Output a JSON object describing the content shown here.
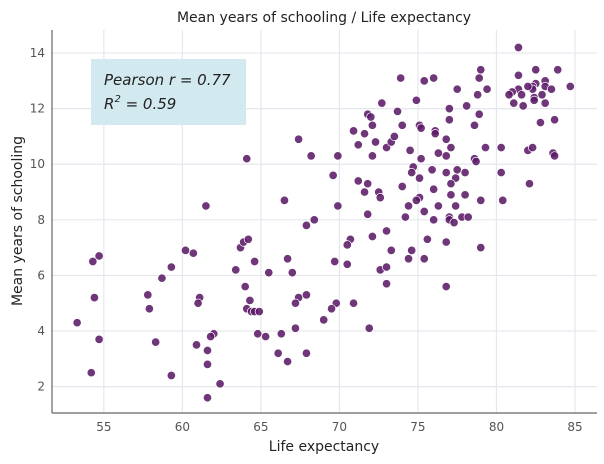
{
  "chart_data": {
    "type": "scatter",
    "title": "Mean years of schooling / Life expectancy",
    "xlabel": "Life expectancy",
    "ylabel": "Mean years of schooling",
    "xlim": [
      51.7,
      86.4
    ],
    "ylim": [
      1.05,
      14.83
    ],
    "xticks": [
      "55",
      "60",
      "65",
      "70",
      "75",
      "80",
      "85"
    ],
    "yticks": [
      "2",
      "4",
      "6",
      "8",
      "10",
      "12",
      "14"
    ],
    "grid": true,
    "point_color": "#5b1a66",
    "annotation": {
      "pearson": "Pearson r = 0.77",
      "r2_base": "R",
      "r2_exp": "2",
      "r2_value": " = 0.59",
      "box_color": "#add8e6"
    },
    "points": [
      [
        61.5,
        8.5
      ],
      [
        54.7,
        6.7
      ],
      [
        54.3,
        6.5
      ],
      [
        54.4,
        5.2
      ],
      [
        53.3,
        4.3
      ],
      [
        54.7,
        3.7
      ],
      [
        54.2,
        2.5
      ],
      [
        60.2,
        6.9
      ],
      [
        60.7,
        6.8
      ],
      [
        59.3,
        6.3
      ],
      [
        58.7,
        5.9
      ],
      [
        57.8,
        5.3
      ],
      [
        57.9,
        4.8
      ],
      [
        58.3,
        3.6
      ],
      [
        59.3,
        2.4
      ],
      [
        61.1,
        5.2
      ],
      [
        61.0,
        5.0
      ],
      [
        62.0,
        3.9
      ],
      [
        61.8,
        3.8
      ],
      [
        60.9,
        3.5
      ],
      [
        61.6,
        3.3
      ],
      [
        61.6,
        2.8
      ],
      [
        62.4,
        2.1
      ],
      [
        61.6,
        1.6
      ],
      [
        63.4,
        6.2
      ],
      [
        63.7,
        7.0
      ],
      [
        63.9,
        7.2
      ],
      [
        64.2,
        7.3
      ],
      [
        64.0,
        5.6
      ],
      [
        64.1,
        10.2
      ],
      [
        67.4,
        10.9
      ],
      [
        68.2,
        10.3
      ],
      [
        69.9,
        10.3
      ],
      [
        70.9,
        11.2
      ],
      [
        71.6,
        11.1
      ],
      [
        72.1,
        11.4
      ],
      [
        71.2,
        10.7
      ],
      [
        72.3,
        10.8
      ],
      [
        72.1,
        10.3
      ],
      [
        73.0,
        10.6
      ],
      [
        73.3,
        10.8
      ],
      [
        73.5,
        11.0
      ],
      [
        69.6,
        9.6
      ],
      [
        71.2,
        9.4
      ],
      [
        71.8,
        9.3
      ],
      [
        71.6,
        9.0
      ],
      [
        72.5,
        9.0
      ],
      [
        72.6,
        8.8
      ],
      [
        69.9,
        8.5
      ],
      [
        66.5,
        8.7
      ],
      [
        71.8,
        8.2
      ],
      [
        68.4,
        8.0
      ],
      [
        67.9,
        7.8
      ],
      [
        73.0,
        7.6
      ],
      [
        72.1,
        7.4
      ],
      [
        70.7,
        7.3
      ],
      [
        70.5,
        7.1
      ],
      [
        73.3,
        6.9
      ],
      [
        64.6,
        6.5
      ],
      [
        65.5,
        6.1
      ],
      [
        66.7,
        6.6
      ],
      [
        67.0,
        6.1
      ],
      [
        69.7,
        6.5
      ],
      [
        70.5,
        6.4
      ],
      [
        72.6,
        6.2
      ],
      [
        73.0,
        6.3
      ],
      [
        73.0,
        5.7
      ],
      [
        64.3,
        5.1
      ],
      [
        64.1,
        4.8
      ],
      [
        64.4,
        4.7
      ],
      [
        64.6,
        4.7
      ],
      [
        64.9,
        4.7
      ],
      [
        67.9,
        5.3
      ],
      [
        67.4,
        5.2
      ],
      [
        67.2,
        5.0
      ],
      [
        69.8,
        5.0
      ],
      [
        69.5,
        4.8
      ],
      [
        70.9,
        5.0
      ],
      [
        69.0,
        4.4
      ],
      [
        71.9,
        4.1
      ],
      [
        67.2,
        4.1
      ],
      [
        64.8,
        3.9
      ],
      [
        65.3,
        3.8
      ],
      [
        66.3,
        3.9
      ],
      [
        66.1,
        3.2
      ],
      [
        66.7,
        2.9
      ],
      [
        67.9,
        3.2
      ],
      [
        73.9,
        13.1
      ],
      [
        75.4,
        13.0
      ],
      [
        76.0,
        13.1
      ],
      [
        79.0,
        13.4
      ],
      [
        78.9,
        13.1
      ],
      [
        77.5,
        12.7
      ],
      [
        78.8,
        12.5
      ],
      [
        79.4,
        12.7
      ],
      [
        72.7,
        12.2
      ],
      [
        74.9,
        12.3
      ],
      [
        77.0,
        12.0
      ],
      [
        78.1,
        12.1
      ],
      [
        73.7,
        11.9
      ],
      [
        78.9,
        11.8
      ],
      [
        77.0,
        11.6
      ],
      [
        74.0,
        11.4
      ],
      [
        75.1,
        11.4
      ],
      [
        75.2,
        11.3
      ],
      [
        76.1,
        11.2
      ],
      [
        76.1,
        11.1
      ],
      [
        78.6,
        11.4
      ],
      [
        76.8,
        10.9
      ],
      [
        77.1,
        10.6
      ],
      [
        79.3,
        10.6
      ],
      [
        74.5,
        10.5
      ],
      [
        76.3,
        10.4
      ],
      [
        76.8,
        10.3
      ],
      [
        75.2,
        10.2
      ],
      [
        78.6,
        10.2
      ],
      [
        78.7,
        10.1
      ],
      [
        74.7,
        9.9
      ],
      [
        74.6,
        9.7
      ],
      [
        75.9,
        9.8
      ],
      [
        76.8,
        9.7
      ],
      [
        77.5,
        9.8
      ],
      [
        78.0,
        9.7
      ],
      [
        75.1,
        9.5
      ],
      [
        77.4,
        9.5
      ],
      [
        77.1,
        9.3
      ],
      [
        74.0,
        9.2
      ],
      [
        76.0,
        9.1
      ],
      [
        77.1,
        8.9
      ],
      [
        78.0,
        8.9
      ],
      [
        75.1,
        8.8
      ],
      [
        74.9,
        8.7
      ],
      [
        79.0,
        8.7
      ],
      [
        74.4,
        8.5
      ],
      [
        76.3,
        8.5
      ],
      [
        77.4,
        8.5
      ],
      [
        75.4,
        8.3
      ],
      [
        74.2,
        8.1
      ],
      [
        76.0,
        8.0
      ],
      [
        77.0,
        8.1
      ],
      [
        77.0,
        8.0
      ],
      [
        77.3,
        7.9
      ],
      [
        77.8,
        8.1
      ],
      [
        78.2,
        8.1
      ],
      [
        75.6,
        7.3
      ],
      [
        76.8,
        7.2
      ],
      [
        79.0,
        7.0
      ],
      [
        74.6,
        6.9
      ],
      [
        74.4,
        6.6
      ],
      [
        75.4,
        6.6
      ],
      [
        76.8,
        5.6
      ],
      [
        71.8,
        11.8
      ],
      [
        72.0,
        11.7
      ],
      [
        81.4,
        14.2
      ],
      [
        81.4,
        13.2
      ],
      [
        82.5,
        13.4
      ],
      [
        83.9,
        13.4
      ],
      [
        83.1,
        13.0
      ],
      [
        82.5,
        12.9
      ],
      [
        82.3,
        12.8
      ],
      [
        82.3,
        12.7
      ],
      [
        82.0,
        12.8
      ],
      [
        81.4,
        12.7
      ],
      [
        81.0,
        12.6
      ],
      [
        80.8,
        12.5
      ],
      [
        81.6,
        12.5
      ],
      [
        83.1,
        12.8
      ],
      [
        83.5,
        12.7
      ],
      [
        82.9,
        12.5
      ],
      [
        84.7,
        12.8
      ],
      [
        81.1,
        12.2
      ],
      [
        81.7,
        12.1
      ],
      [
        82.4,
        12.4
      ],
      [
        82.4,
        12.3
      ],
      [
        83.1,
        12.2
      ],
      [
        82.8,
        11.5
      ],
      [
        83.7,
        11.6
      ],
      [
        80.3,
        10.6
      ],
      [
        82.0,
        10.5
      ],
      [
        82.3,
        10.6
      ],
      [
        83.6,
        10.4
      ],
      [
        83.7,
        10.3
      ],
      [
        80.3,
        9.7
      ],
      [
        82.1,
        9.3
      ],
      [
        80.4,
        8.7
      ]
    ]
  }
}
